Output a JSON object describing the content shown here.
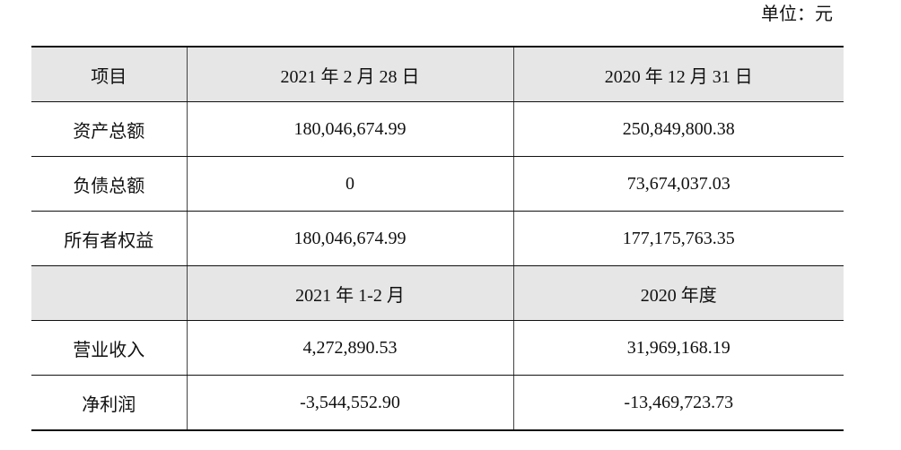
{
  "unit": "单位：元",
  "table": {
    "rows": [
      [
        "项目",
        "2021 年 2 月 28 日",
        "2020 年 12 月 31 日"
      ],
      [
        "资产总额",
        "180,046,674.99",
        "250,849,800.38"
      ],
      [
        "负债总额",
        "0",
        "73,674,037.03"
      ],
      [
        "所有者权益",
        "180,046,674.99",
        "177,175,763.35"
      ],
      [
        null,
        "2021 年 1-2 月",
        "2020 年度"
      ],
      [
        "营业收入",
        "4,272,890.53",
        "31,969,168.19"
      ],
      [
        "净利润",
        "-3,544,552.90",
        "-13,469,723.73"
      ]
    ]
  }
}
